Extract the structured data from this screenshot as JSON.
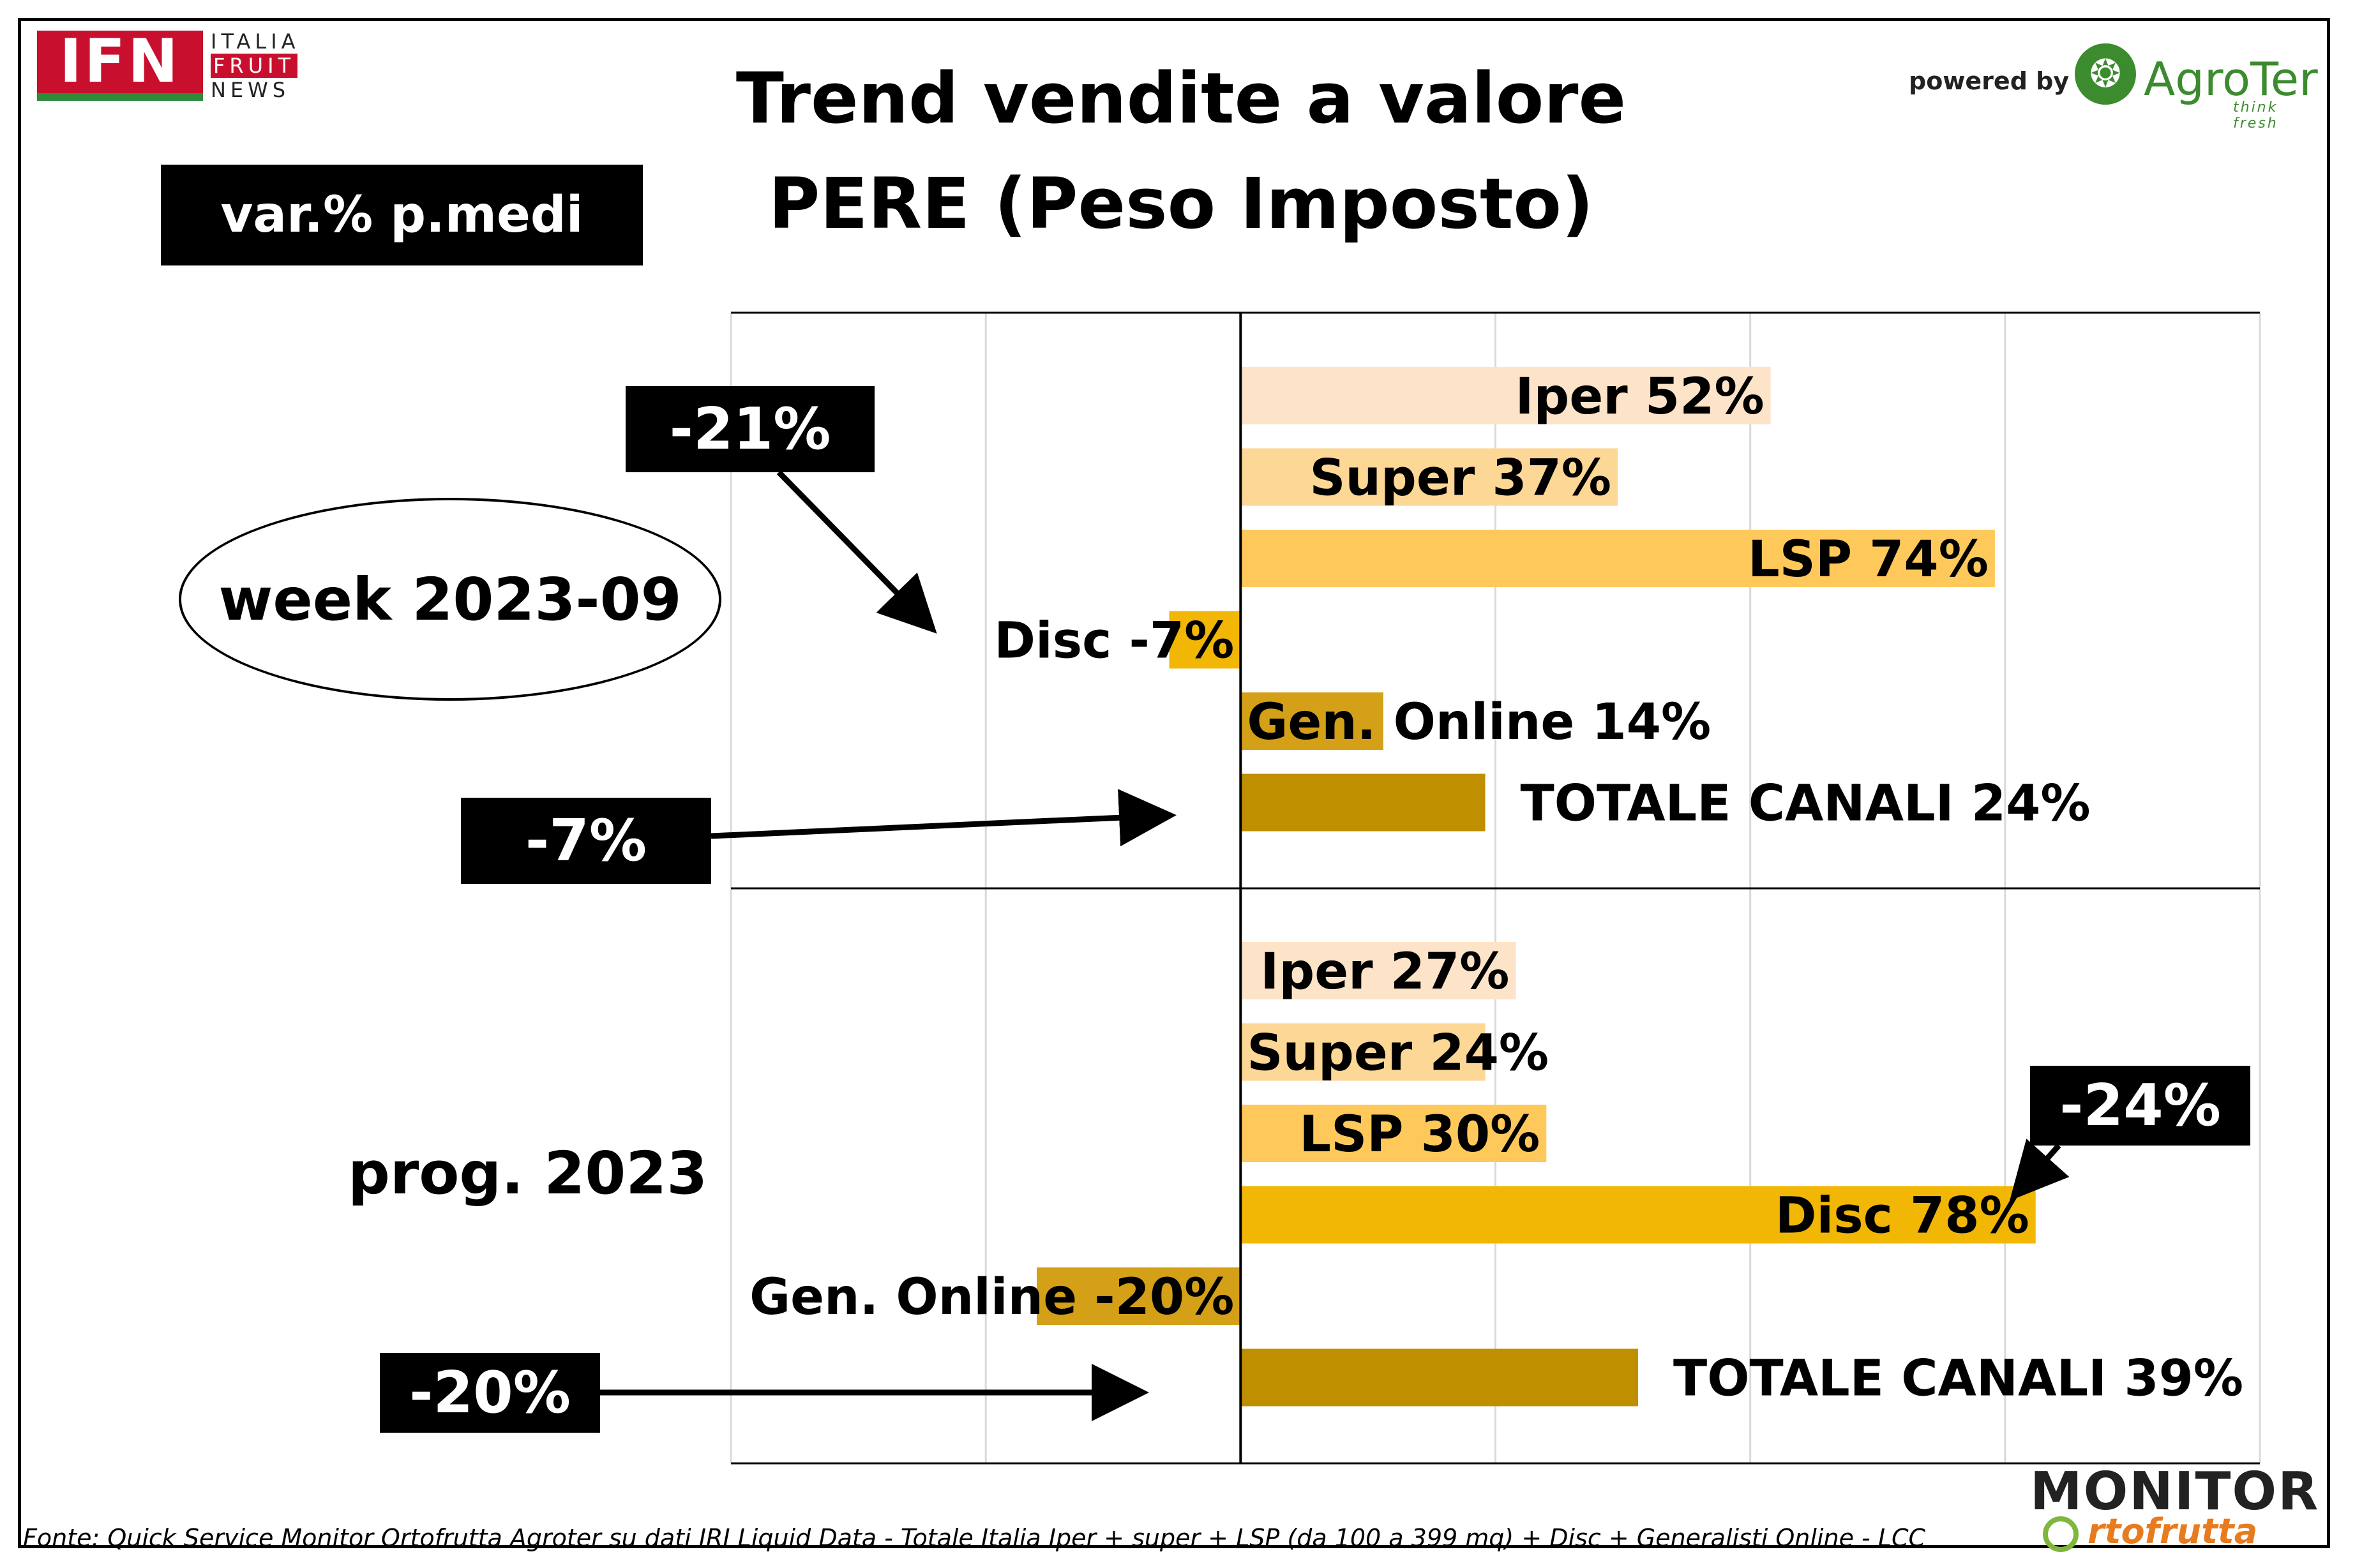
{
  "header": {
    "title_line1": "Trend vendite a valore",
    "title_line2": "PERE (Peso Imposto)",
    "measure_label": "var.% p.medi"
  },
  "logos": {
    "ifn_mark": "IFN",
    "ifn_line1": "ITALIA",
    "ifn_line2": "FRUIT",
    "ifn_line3": "NEWS",
    "powered_by": "powered by",
    "agroter_name": "AgroTer",
    "agroter_tagline": "think fresh",
    "monitor_top": "MONITOR",
    "monitor_bottom": "rtofrutta"
  },
  "sections": {
    "week_label": "week 2023-09",
    "prog_label": "prog. 2023"
  },
  "callouts": {
    "week_disc": "-21%",
    "week_total": "-7%",
    "prog_disc": "-24%",
    "prog_total": "-20%"
  },
  "colors": {
    "iper": "#fde4c8",
    "super": "#fdd795",
    "lsp": "#fec95a",
    "disc": "#f2b705",
    "online": "#d4a017",
    "totale": "#bf8f00"
  },
  "chart_data": {
    "type": "bar",
    "orientation": "horizontal",
    "xlim": [
      -50,
      100
    ],
    "grid": true,
    "panels": [
      {
        "name": "week 2023-09",
        "bars": [
          {
            "label": "Iper 52%",
            "value": 52,
            "color_key": "iper"
          },
          {
            "label": "Super 37%",
            "value": 37,
            "color_key": "super"
          },
          {
            "label": "LSP 74%",
            "value": 74,
            "color_key": "lsp"
          },
          {
            "label": "Disc -7%",
            "value": -7,
            "color_key": "disc"
          },
          {
            "label": "Gen. Online 14%",
            "value": 14,
            "color_key": "online"
          },
          {
            "label": "TOTALE CANALI 24%",
            "value": 24,
            "color_key": "totale"
          }
        ]
      },
      {
        "name": "prog. 2023",
        "bars": [
          {
            "label": "Iper 27%",
            "value": 27,
            "color_key": "iper"
          },
          {
            "label": "Super 24%",
            "value": 24,
            "color_key": "super"
          },
          {
            "label": "LSP 30%",
            "value": 30,
            "color_key": "lsp"
          },
          {
            "label": "Disc 78%",
            "value": 78,
            "color_key": "disc"
          },
          {
            "label": "Gen. Online -20%",
            "value": -20,
            "color_key": "online"
          },
          {
            "label": "TOTALE CANALI 39%",
            "value": 39,
            "color_key": "totale"
          }
        ]
      }
    ]
  },
  "footer": {
    "source": "Fonte: Quick Service Monitor Ortofrutta Agroter su dati IRI Liquid Data - Totale Italia Iper + super + LSP (da 100 a 399 mq) + Disc + Generalisti Online - LCC"
  }
}
